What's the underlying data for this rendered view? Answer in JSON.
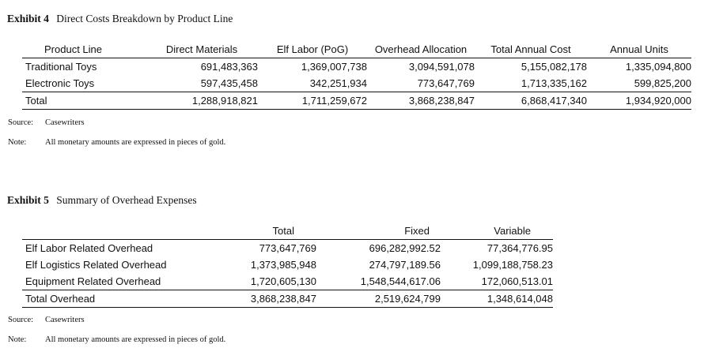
{
  "exhibit4": {
    "number": "Exhibit 4",
    "title": "Direct Costs Breakdown by Product Line",
    "columns": [
      "Product Line",
      "Direct Materials",
      "Elf Labor (PoG)",
      "Overhead Allocation",
      "Total Annual Cost",
      "Annual Units"
    ],
    "rows": [
      [
        "Traditional Toys",
        "691,483,363",
        "1,369,007,738",
        "3,094,591,078",
        "5,155,082,178",
        "1,335,094,800"
      ],
      [
        "Electronic Toys",
        "597,435,458",
        "342,251,934",
        "773,647,769",
        "1,713,335,162",
        "599,825,200"
      ]
    ],
    "total": [
      "Total",
      "1,288,918,821",
      "1,711,259,672",
      "3,868,238,847",
      "6,868,417,340",
      "1,934,920,000"
    ],
    "source_label": "Source:",
    "source": "Casewriters",
    "note_label": "Note:",
    "note": "All monetary amounts are expressed in pieces of gold."
  },
  "exhibit5": {
    "number": "Exhibit 5",
    "title": "Summary of Overhead Expenses",
    "columns": [
      "",
      "Total",
      "Fixed",
      "Variable"
    ],
    "rows": [
      [
        "Elf Labor Related Overhead",
        "773,647,769",
        "696,282,992.52",
        "77,364,776.95"
      ],
      [
        "Elf Logistics Related Overhead",
        "1,373,985,948",
        "274,797,189.56",
        "1,099,188,758.23"
      ],
      [
        "Equipment Related Overhead",
        "1,720,605,130",
        "1,548,544,617.06",
        "172,060,513.01"
      ]
    ],
    "total": [
      "Total Overhead",
      "3,868,238,847",
      "2,519,624,799",
      "1,348,614,048"
    ],
    "source_label": "Source:",
    "source": "Casewriters",
    "note_label": "Note:",
    "note": "All monetary amounts are expressed in pieces of gold."
  }
}
